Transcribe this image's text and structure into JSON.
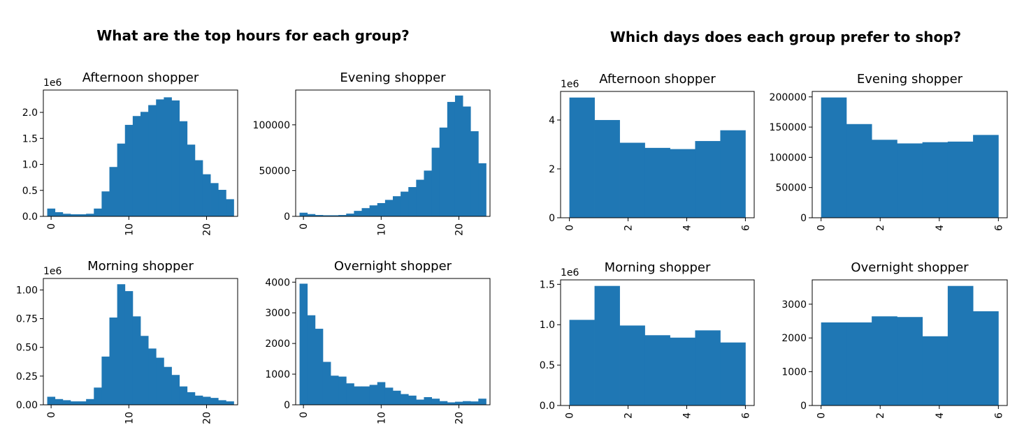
{
  "groups": [
    {
      "title": "What are the top hours for each group?"
    },
    {
      "title": "Which days does each group prefer to shop?"
    }
  ],
  "chart_data": [
    {
      "type": "bar",
      "title": "Afternoon shopper",
      "offset_label": "1e6",
      "x": [
        0,
        1,
        2,
        3,
        4,
        5,
        6,
        7,
        8,
        9,
        10,
        11,
        12,
        13,
        14,
        15,
        16,
        17,
        18,
        19,
        20,
        21,
        22,
        23
      ],
      "values": [
        0.15,
        0.08,
        0.05,
        0.04,
        0.04,
        0.05,
        0.15,
        0.48,
        0.95,
        1.4,
        1.76,
        1.93,
        2.01,
        2.14,
        2.25,
        2.29,
        2.23,
        1.83,
        1.38,
        1.08,
        0.81,
        0.64,
        0.51,
        0.33
      ],
      "xlim": [
        -1,
        24
      ],
      "ylim": [
        0,
        2.43
      ],
      "xticks": [
        0,
        10,
        20
      ],
      "xtick_labels": [
        "0",
        "10",
        "20"
      ],
      "yticks": [
        0,
        0.5,
        1.0,
        1.5,
        2.0
      ],
      "ytick_labels": [
        "0.0",
        "0.5",
        "1.0",
        "1.5",
        "2.0"
      ],
      "color": "#1f77b4"
    },
    {
      "type": "bar",
      "title": "Evening shopper",
      "offset_label": "",
      "x": [
        0,
        1,
        2,
        3,
        4,
        5,
        6,
        7,
        8,
        9,
        10,
        11,
        12,
        13,
        14,
        15,
        16,
        17,
        18,
        19,
        20,
        21,
        22,
        23
      ],
      "values": [
        4000,
        2500,
        1500,
        1200,
        1200,
        1500,
        3000,
        6000,
        9000,
        12000,
        14500,
        18000,
        22000,
        27000,
        32000,
        40000,
        50000,
        75000,
        97000,
        125000,
        132000,
        120000,
        93000,
        58000
      ],
      "xlim": [
        -1,
        24
      ],
      "ylim": [
        0,
        138000
      ],
      "xticks": [
        0,
        10,
        20
      ],
      "xtick_labels": [
        "0",
        "10",
        "20"
      ],
      "yticks": [
        0,
        50000,
        100000
      ],
      "ytick_labels": [
        "0",
        "50000",
        "100000"
      ],
      "color": "#1f77b4"
    },
    {
      "type": "bar",
      "title": "Morning shopper",
      "offset_label": "1e6",
      "x": [
        0,
        1,
        2,
        3,
        4,
        5,
        6,
        7,
        8,
        9,
        10,
        11,
        12,
        13,
        14,
        15,
        16,
        17,
        18,
        19,
        20,
        21,
        22,
        23
      ],
      "values": [
        0.07,
        0.05,
        0.04,
        0.03,
        0.03,
        0.05,
        0.15,
        0.42,
        0.76,
        1.05,
        0.99,
        0.77,
        0.6,
        0.49,
        0.41,
        0.33,
        0.26,
        0.16,
        0.11,
        0.08,
        0.07,
        0.06,
        0.04,
        0.03
      ],
      "xlim": [
        -1,
        24
      ],
      "ylim": [
        0,
        1.1
      ],
      "xticks": [
        0,
        10,
        20
      ],
      "xtick_labels": [
        "0",
        "10",
        "20"
      ],
      "yticks": [
        0,
        0.25,
        0.5,
        0.75,
        1.0
      ],
      "ytick_labels": [
        "0.00",
        "0.25",
        "0.50",
        "0.75",
        "1.00"
      ],
      "color": "#1f77b4"
    },
    {
      "type": "bar",
      "title": "Overnight shopper",
      "offset_label": "",
      "x": [
        0,
        1,
        2,
        3,
        4,
        5,
        6,
        7,
        8,
        9,
        10,
        11,
        12,
        13,
        14,
        15,
        16,
        17,
        18,
        19,
        20,
        21,
        22,
        23
      ],
      "values": [
        3950,
        2920,
        2480,
        1400,
        950,
        920,
        700,
        600,
        600,
        650,
        740,
        560,
        460,
        350,
        300,
        170,
        250,
        200,
        120,
        80,
        100,
        120,
        110,
        200
      ],
      "xlim": [
        -1,
        24
      ],
      "ylim": [
        0,
        4120
      ],
      "xticks": [
        0,
        10,
        20
      ],
      "xtick_labels": [
        "0",
        "10",
        "20"
      ],
      "yticks": [
        0,
        1000,
        2000,
        3000,
        4000
      ],
      "ytick_labels": [
        "0",
        "1000",
        "2000",
        "3000",
        "4000"
      ],
      "color": "#1f77b4"
    },
    {
      "type": "bar",
      "title": "Afternoon shopper",
      "offset_label": "1e6",
      "bin_edges": [
        0,
        0.857,
        1.714,
        2.571,
        3.429,
        4.286,
        5.143,
        6.0
      ],
      "values": [
        4.92,
        4.0,
        3.07,
        2.86,
        2.81,
        3.14,
        3.58
      ],
      "xlim": [
        -0.3,
        6.3
      ],
      "ylim": [
        0,
        5.17
      ],
      "xticks": [
        0,
        2,
        4,
        6
      ],
      "xtick_labels": [
        "0",
        "2",
        "4",
        "6"
      ],
      "yticks": [
        0,
        2,
        4
      ],
      "ytick_labels": [
        "0",
        "2",
        "4"
      ],
      "color": "#1f77b4"
    },
    {
      "type": "bar",
      "title": "Evening shopper",
      "offset_label": "",
      "bin_edges": [
        0,
        0.857,
        1.714,
        2.571,
        3.429,
        4.286,
        5.143,
        6.0
      ],
      "values": [
        199000,
        155000,
        129000,
        123000,
        125000,
        126000,
        137000
      ],
      "xlim": [
        -0.3,
        6.3
      ],
      "ylim": [
        0,
        209000
      ],
      "xticks": [
        0,
        2,
        4,
        6
      ],
      "xtick_labels": [
        "0",
        "2",
        "4",
        "6"
      ],
      "yticks": [
        0,
        50000,
        100000,
        150000,
        200000
      ],
      "ytick_labels": [
        "0",
        "50000",
        "100000",
        "150000",
        "200000"
      ],
      "color": "#1f77b4"
    },
    {
      "type": "bar",
      "title": "Morning shopper",
      "offset_label": "1e6",
      "bin_edges": [
        0,
        0.857,
        1.714,
        2.571,
        3.429,
        4.286,
        5.143,
        6.0
      ],
      "values": [
        1.06,
        1.48,
        0.99,
        0.87,
        0.84,
        0.93,
        0.78
      ],
      "xlim": [
        -0.3,
        6.3
      ],
      "ylim": [
        0,
        1.555
      ],
      "xticks": [
        0,
        2,
        4,
        6
      ],
      "xtick_labels": [
        "0",
        "2",
        "4",
        "6"
      ],
      "yticks": [
        0,
        0.5,
        1.0,
        1.5
      ],
      "ytick_labels": [
        "0.0",
        "0.5",
        "1.0",
        "1.5"
      ],
      "color": "#1f77b4"
    },
    {
      "type": "bar",
      "title": "Overnight shopper",
      "offset_label": "",
      "bin_edges": [
        0,
        0.857,
        1.714,
        2.571,
        3.429,
        4.286,
        5.143,
        6.0
      ],
      "values": [
        2460,
        2460,
        2640,
        2620,
        2050,
        3540,
        2790
      ],
      "xlim": [
        -0.3,
        6.3
      ],
      "ylim": [
        0,
        3720
      ],
      "xticks": [
        0,
        2,
        4,
        6
      ],
      "xtick_labels": [
        "0",
        "2",
        "4",
        "6"
      ],
      "yticks": [
        0,
        1000,
        2000,
        3000
      ],
      "ytick_labels": [
        "0",
        "1000",
        "2000",
        "3000"
      ],
      "color": "#1f77b4"
    }
  ]
}
